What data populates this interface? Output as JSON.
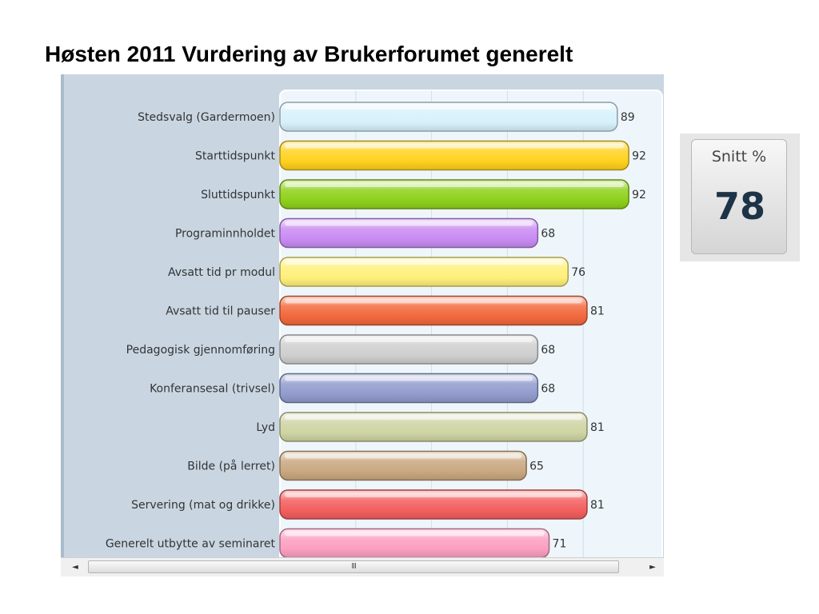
{
  "title": "Høsten 2011 Vurdering av Brukerforumet generelt",
  "kpi": {
    "label": "Snitt %",
    "value": "78"
  },
  "scrollbar": {
    "left_arrow": "◄",
    "right_arrow": "►",
    "grip": "III"
  },
  "chart_data": {
    "type": "bar",
    "orientation": "horizontal",
    "categories": [
      "Stedsvalg (Gardermoen)",
      "Starttidspunkt",
      "Sluttidspunkt",
      "Programinnholdet",
      "Avsatt tid pr modul",
      "Avsatt tid til pauser",
      "Pedagogisk gjennomføring",
      "Konferansesal (trivsel)",
      "Lyd",
      "Bilde (på lerret)",
      "Servering (mat og drikke)",
      "Generelt utbytte av seminaret"
    ],
    "values": [
      89,
      92,
      92,
      68,
      76,
      81,
      68,
      68,
      81,
      65,
      81,
      71
    ],
    "colors": [
      "#d7f1fb",
      "#ffd21f",
      "#8fd11c",
      "#c98cf2",
      "#fff07a",
      "#f2693d",
      "#cfcfcf",
      "#929ccd",
      "#cfd4a3",
      "#c9a880",
      "#f35f5f",
      "#fb9fc1"
    ],
    "xlim": [
      0,
      100
    ],
    "grid": true,
    "value_labels": true
  }
}
